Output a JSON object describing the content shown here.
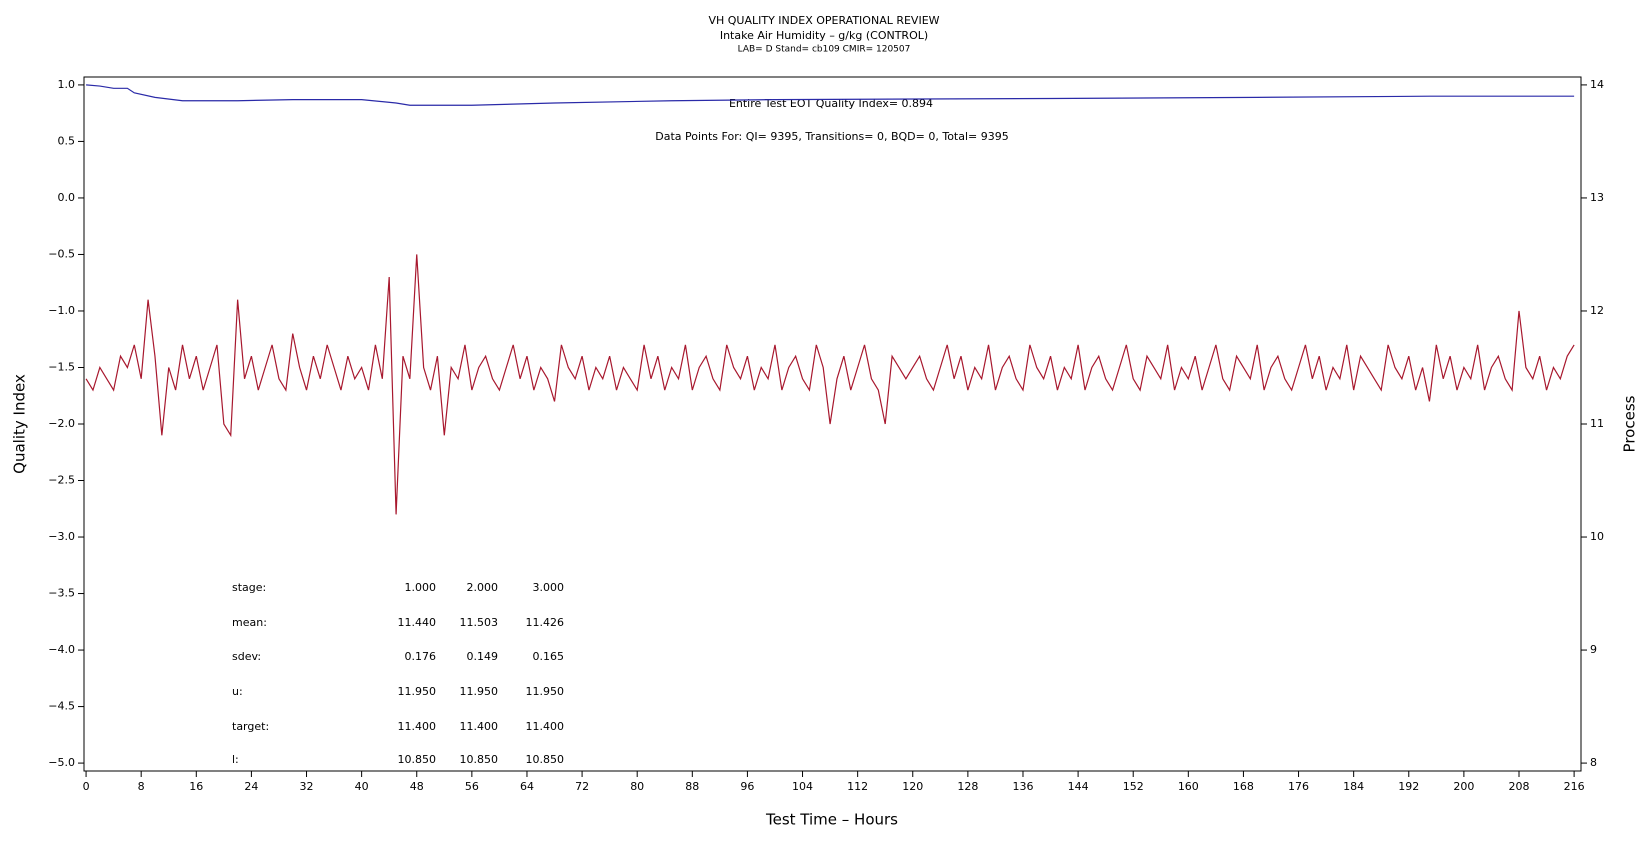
{
  "chart_data": {
    "type": "line",
    "title": "VH QUALITY INDEX OPERATIONAL REVIEW",
    "subtitle": "Intake Air Humidity – g/kg (CONTROL)",
    "subtitle2": "LAB= D Stand= cb109 CMIR= 120507",
    "xlabel": "Test Time – Hours",
    "ylabel": "Quality Index",
    "y2label": "Process",
    "annotations": [
      "Entire Test EOT Quality Index=   0.894",
      "Data Points For: QI=  9395, Transitions=     0, BQD=     0, Total=  9395"
    ],
    "stats": [
      [
        "stage:",
        "1.000",
        "2.000",
        "3.000"
      ],
      [
        "mean:",
        "11.440",
        "11.503",
        "11.426"
      ],
      [
        "sdev:",
        "0.176",
        "0.149",
        "0.165"
      ],
      [
        "u:",
        "11.950",
        "11.950",
        "11.950"
      ],
      [
        "target:",
        "11.400",
        "11.400",
        "11.400"
      ],
      [
        "l:",
        "10.850",
        "10.850",
        "10.850"
      ]
    ],
    "xlim": [
      -0.3,
      217
    ],
    "xticks": [
      0,
      8,
      16,
      24,
      32,
      40,
      48,
      56,
      64,
      72,
      80,
      88,
      96,
      104,
      112,
      120,
      128,
      136,
      144,
      152,
      160,
      168,
      176,
      184,
      192,
      200,
      208,
      216
    ],
    "ylim": [
      -5.07,
      1.07
    ],
    "yticks": [
      {
        "value": 1,
        "label": "1.0"
      },
      {
        "value": 0.5,
        "label": "0.5"
      },
      {
        "value": 0,
        "label": "0.0"
      },
      {
        "value": -0.5,
        "label": "−0.5"
      },
      {
        "value": -1,
        "label": "−1.0"
      },
      {
        "value": -1.5,
        "label": "−1.5"
      },
      {
        "value": -2,
        "label": "−2.0"
      },
      {
        "value": -2.5,
        "label": "−2.5"
      },
      {
        "value": -3,
        "label": "−3.0"
      },
      {
        "value": -3.5,
        "label": "−3.5"
      },
      {
        "value": -4,
        "label": "−4.0"
      },
      {
        "value": -4.5,
        "label": "−4.5"
      },
      {
        "value": -5,
        "label": "−5.0"
      }
    ],
    "y2lim": [
      7.93,
      14.07
    ],
    "y2ticks": [
      8,
      9,
      10,
      11,
      12,
      13,
      14
    ],
    "series": [
      {
        "color": "#2a2aa8",
        "axis": "y",
        "x": [
          0,
          2,
          4,
          6,
          7,
          10,
          14,
          22,
          30,
          40,
          45,
          47,
          56,
          68,
          85,
          100,
          140,
          170,
          195,
          216
        ],
        "values": [
          1,
          0.99,
          0.97,
          0.97,
          0.93,
          0.89,
          0.86,
          0.86,
          0.87,
          0.87,
          0.84,
          0.82,
          0.82,
          0.84,
          0.86,
          0.87,
          0.88,
          0.89,
          0.9,
          0.9
        ]
      },
      {
        "color": "#a8182e",
        "axis": "y2",
        "x": [
          0,
          1,
          2,
          3,
          4,
          5,
          6,
          7,
          8,
          9,
          10,
          11,
          12,
          13,
          14,
          15,
          16,
          17,
          18,
          19,
          20,
          21,
          22,
          23,
          24,
          25,
          26,
          27,
          28,
          29,
          30,
          31,
          32,
          33,
          34,
          35,
          36,
          37,
          38,
          39,
          40,
          41,
          42,
          43,
          44,
          45,
          46,
          47,
          48,
          49,
          50,
          51,
          52,
          53,
          54,
          55,
          56,
          57,
          58,
          59,
          60,
          61,
          62,
          63,
          64,
          65,
          66,
          67,
          68,
          69,
          70,
          71,
          72,
          73,
          74,
          75,
          76,
          77,
          78,
          79,
          80,
          81,
          82,
          83,
          84,
          85,
          86,
          87,
          88,
          89,
          90,
          91,
          92,
          93,
          94,
          95,
          96,
          97,
          98,
          99,
          100,
          101,
          102,
          103,
          104,
          105,
          106,
          107,
          108,
          109,
          110,
          111,
          112,
          113,
          114,
          115,
          116,
          117,
          118,
          119,
          120,
          121,
          122,
          123,
          124,
          125,
          126,
          127,
          128,
          129,
          130,
          131,
          132,
          133,
          134,
          135,
          136,
          137,
          138,
          139,
          140,
          141,
          142,
          143,
          144,
          145,
          146,
          147,
          148,
          149,
          150,
          151,
          152,
          153,
          154,
          155,
          156,
          157,
          158,
          159,
          160,
          161,
          162,
          163,
          164,
          165,
          166,
          167,
          168,
          169,
          170,
          171,
          172,
          173,
          174,
          175,
          176,
          177,
          178,
          179,
          180,
          181,
          182,
          183,
          184,
          185,
          186,
          187,
          188,
          189,
          190,
          191,
          192,
          193,
          194,
          195,
          196,
          197,
          198,
          199,
          200,
          201,
          202,
          203,
          204,
          205,
          206,
          207,
          208,
          209,
          210,
          211,
          212,
          213,
          214,
          215,
          216
        ],
        "values": [
          11.4,
          11.3,
          11.5,
          11.4,
          11.3,
          11.6,
          11.5,
          11.7,
          11.4,
          12.1,
          11.6,
          10.9,
          11.5,
          11.3,
          11.7,
          11.4,
          11.6,
          11.3,
          11.5,
          11.7,
          11.0,
          10.9,
          12.1,
          11.4,
          11.6,
          11.3,
          11.5,
          11.7,
          11.4,
          11.3,
          11.8,
          11.5,
          11.3,
          11.6,
          11.4,
          11.7,
          11.5,
          11.3,
          11.6,
          11.4,
          11.5,
          11.3,
          11.7,
          11.4,
          12.3,
          10.2,
          11.6,
          11.4,
          12.5,
          11.5,
          11.3,
          11.6,
          10.9,
          11.5,
          11.4,
          11.7,
          11.3,
          11.5,
          11.6,
          11.4,
          11.3,
          11.5,
          11.7,
          11.4,
          11.6,
          11.3,
          11.5,
          11.4,
          11.2,
          11.7,
          11.5,
          11.4,
          11.6,
          11.3,
          11.5,
          11.4,
          11.6,
          11.3,
          11.5,
          11.4,
          11.3,
          11.7,
          11.4,
          11.6,
          11.3,
          11.5,
          11.4,
          11.7,
          11.3,
          11.5,
          11.6,
          11.4,
          11.3,
          11.7,
          11.5,
          11.4,
          11.6,
          11.3,
          11.5,
          11.4,
          11.7,
          11.3,
          11.5,
          11.6,
          11.4,
          11.3,
          11.7,
          11.5,
          11.0,
          11.4,
          11.6,
          11.3,
          11.5,
          11.7,
          11.4,
          11.3,
          11.0,
          11.6,
          11.5,
          11.4,
          11.5,
          11.6,
          11.4,
          11.3,
          11.5,
          11.7,
          11.4,
          11.6,
          11.3,
          11.5,
          11.4,
          11.7,
          11.3,
          11.5,
          11.6,
          11.4,
          11.3,
          11.7,
          11.5,
          11.4,
          11.6,
          11.3,
          11.5,
          11.4,
          11.7,
          11.3,
          11.5,
          11.6,
          11.4,
          11.3,
          11.5,
          11.7,
          11.4,
          11.3,
          11.6,
          11.5,
          11.4,
          11.7,
          11.3,
          11.5,
          11.4,
          11.6,
          11.3,
          11.5,
          11.7,
          11.4,
          11.3,
          11.6,
          11.5,
          11.4,
          11.7,
          11.3,
          11.5,
          11.6,
          11.4,
          11.3,
          11.5,
          11.7,
          11.4,
          11.6,
          11.3,
          11.5,
          11.4,
          11.7,
          11.3,
          11.6,
          11.5,
          11.4,
          11.3,
          11.7,
          11.5,
          11.4,
          11.6,
          11.3,
          11.5,
          11.2,
          11.7,
          11.4,
          11.6,
          11.3,
          11.5,
          11.4,
          11.7,
          11.3,
          11.5,
          11.6,
          11.4,
          11.3,
          12.0,
          11.5,
          11.4,
          11.6,
          11.3,
          11.5,
          11.4,
          11.6,
          11.7
        ]
      }
    ]
  }
}
